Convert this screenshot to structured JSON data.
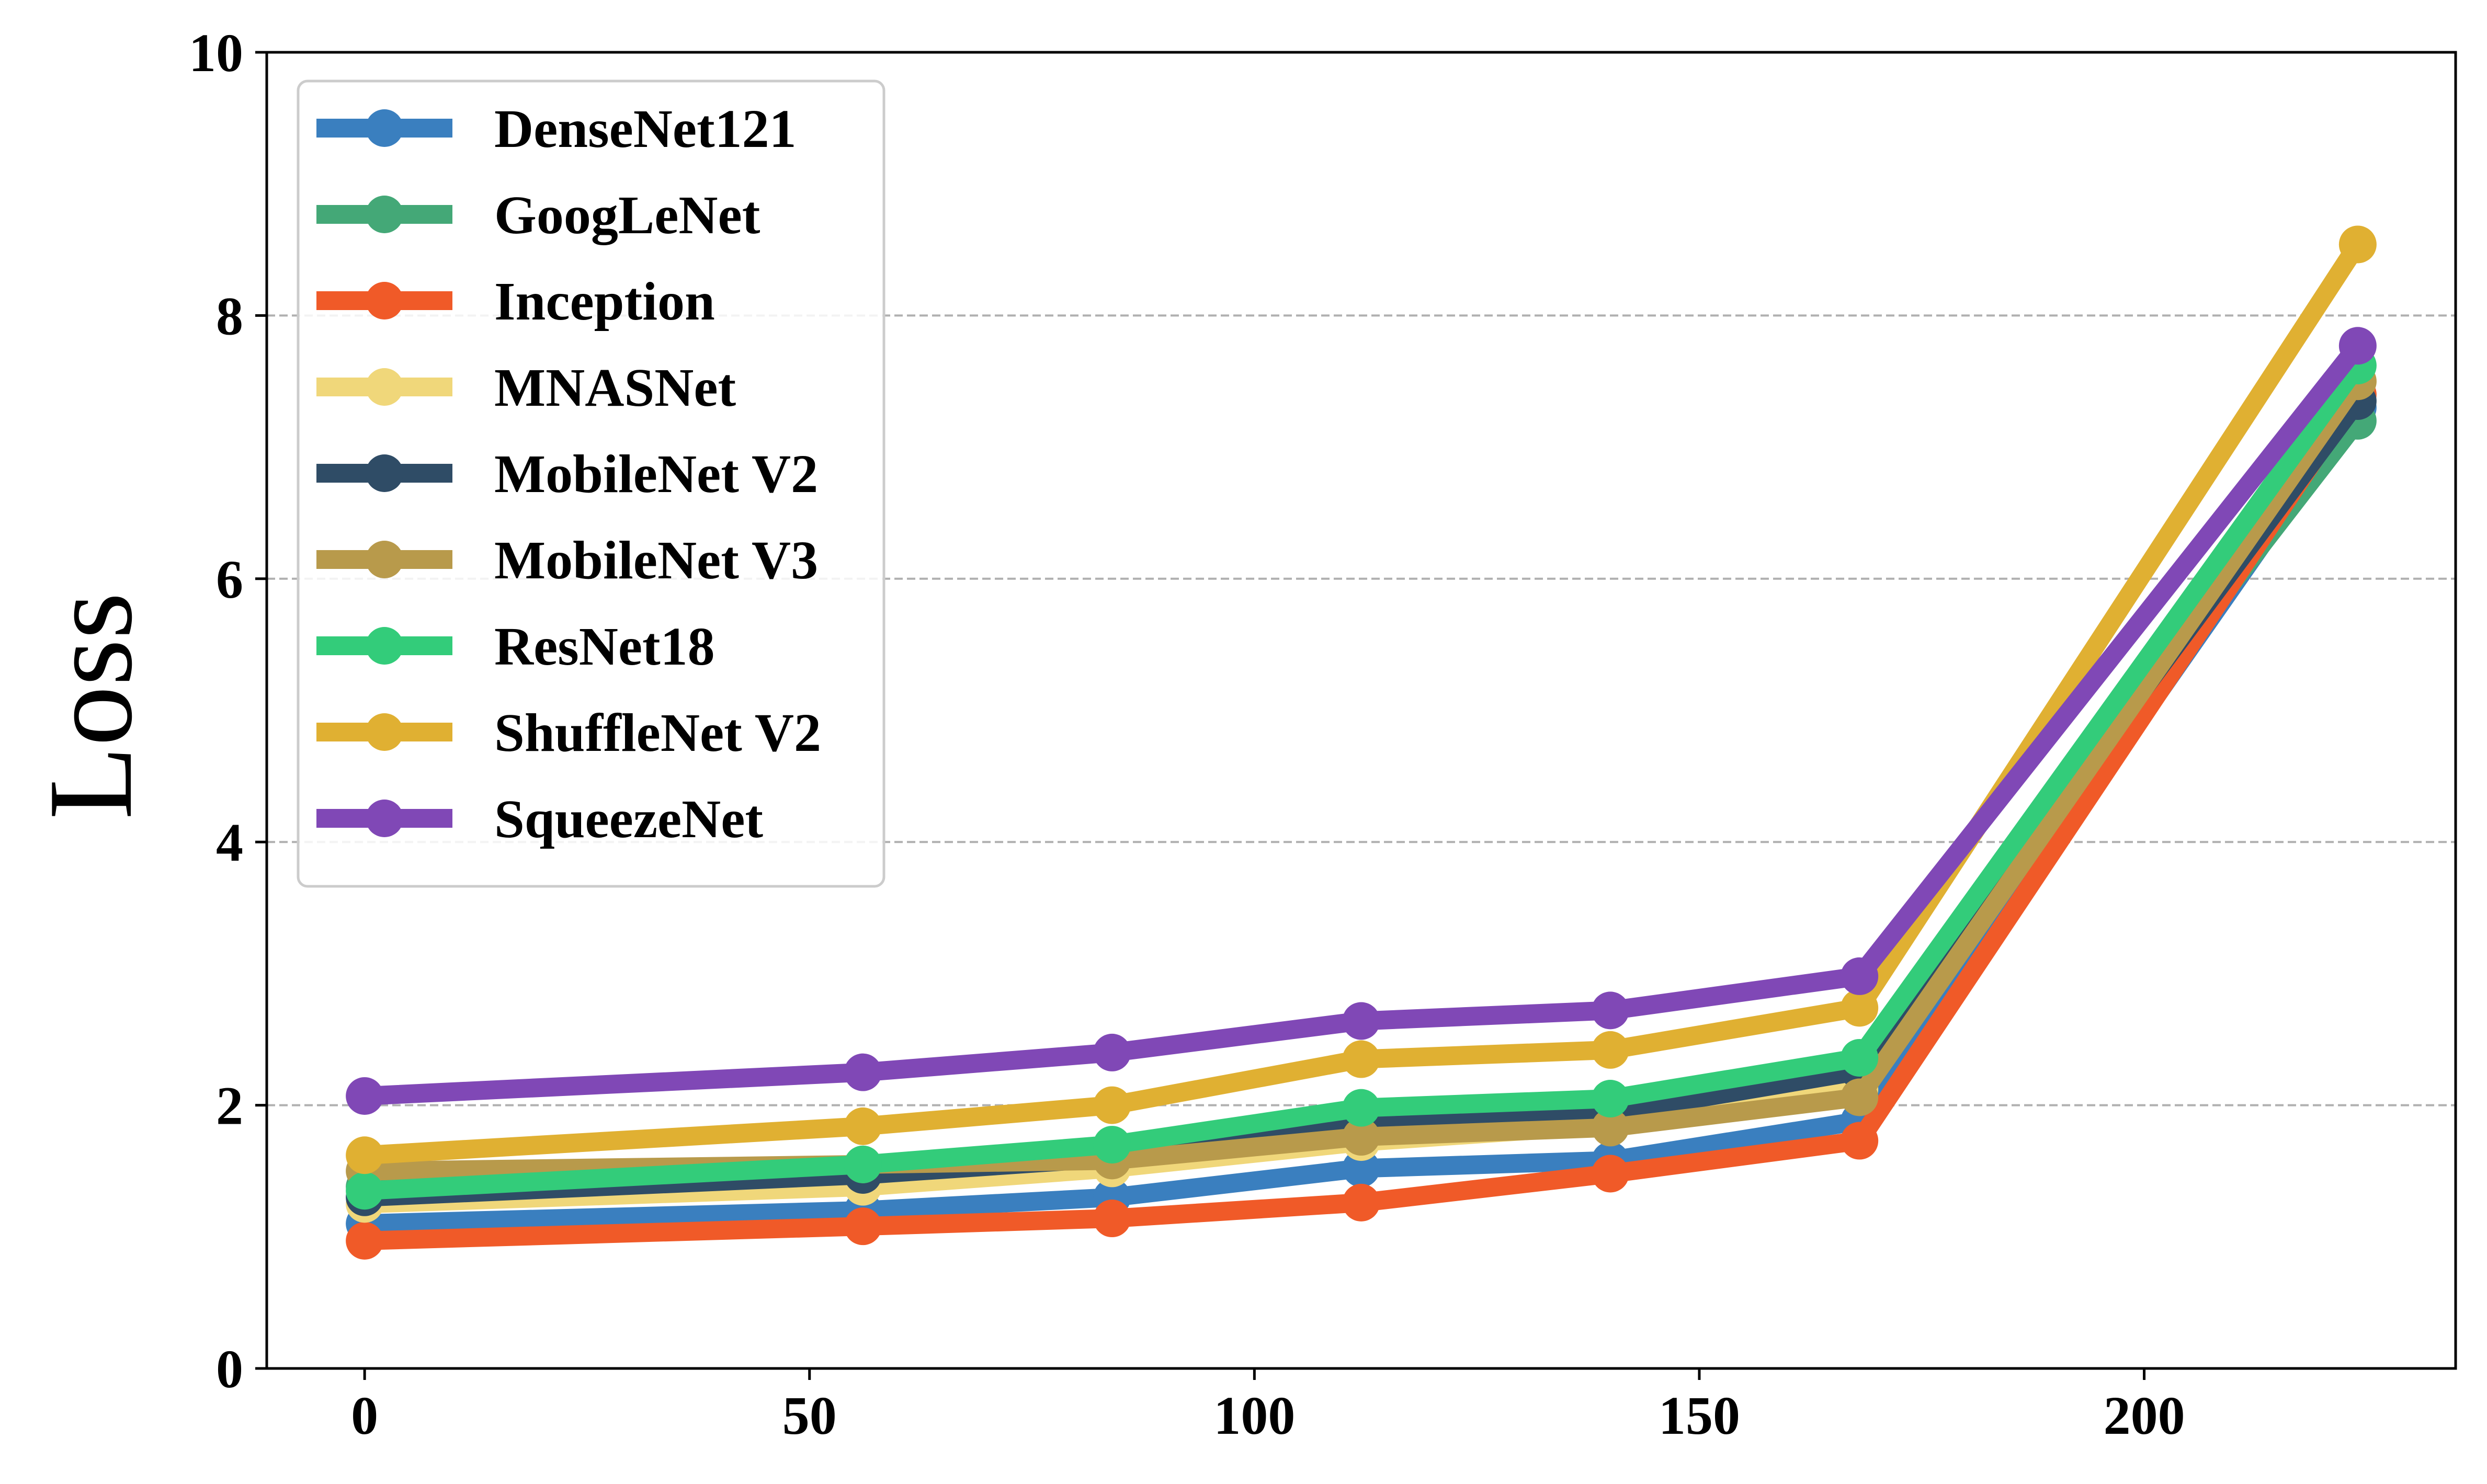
{
  "chart_data": {
    "type": "line",
    "title": "",
    "xlabel": "",
    "ylabel": "Loss",
    "xlim": [
      -11,
      235
    ],
    "ylim": [
      0,
      10
    ],
    "xticks": [
      0,
      50,
      100,
      150,
      200
    ],
    "yticks": [
      0,
      2,
      4,
      6,
      8,
      10
    ],
    "grid": "horizontal dashed",
    "legend_position": "top-left",
    "x": [
      0,
      56,
      84,
      112,
      140,
      168,
      224
    ],
    "series": [
      {
        "name": "DenseNet121",
        "color": "#3a7fbf",
        "values": [
          1.1,
          1.2,
          1.3,
          1.52,
          1.58,
          1.88,
          7.3
        ]
      },
      {
        "name": "GoogLeNet",
        "color": "#44a877",
        "values": [
          1.38,
          1.52,
          1.68,
          1.95,
          2.0,
          2.3,
          7.2
        ]
      },
      {
        "name": "Inception",
        "color": "#f05a28",
        "values": [
          0.97,
          1.08,
          1.14,
          1.26,
          1.48,
          1.73,
          7.4
        ]
      },
      {
        "name": "MNASNet",
        "color": "#f0d77a",
        "values": [
          1.25,
          1.38,
          1.52,
          1.72,
          1.85,
          2.12,
          7.5
        ]
      },
      {
        "name": "MobileNet V2",
        "color": "#2f4c66",
        "values": [
          1.3,
          1.47,
          1.6,
          1.86,
          1.94,
          2.26,
          7.35
        ]
      },
      {
        "name": "MobileNet V3",
        "color": "#b89a4b",
        "values": [
          1.5,
          1.55,
          1.58,
          1.76,
          1.83,
          2.06,
          7.5
        ]
      },
      {
        "name": "ResNet18",
        "color": "#33cc7a",
        "values": [
          1.35,
          1.55,
          1.7,
          1.98,
          2.05,
          2.36,
          7.62
        ]
      },
      {
        "name": "ShuffleNet V2",
        "color": "#e0b032",
        "values": [
          1.62,
          1.84,
          2.0,
          2.35,
          2.42,
          2.74,
          8.54
        ]
      },
      {
        "name": "SqueezeNet",
        "color": "#8048b6",
        "values": [
          2.07,
          2.25,
          2.4,
          2.64,
          2.72,
          2.98,
          7.77
        ]
      }
    ]
  }
}
